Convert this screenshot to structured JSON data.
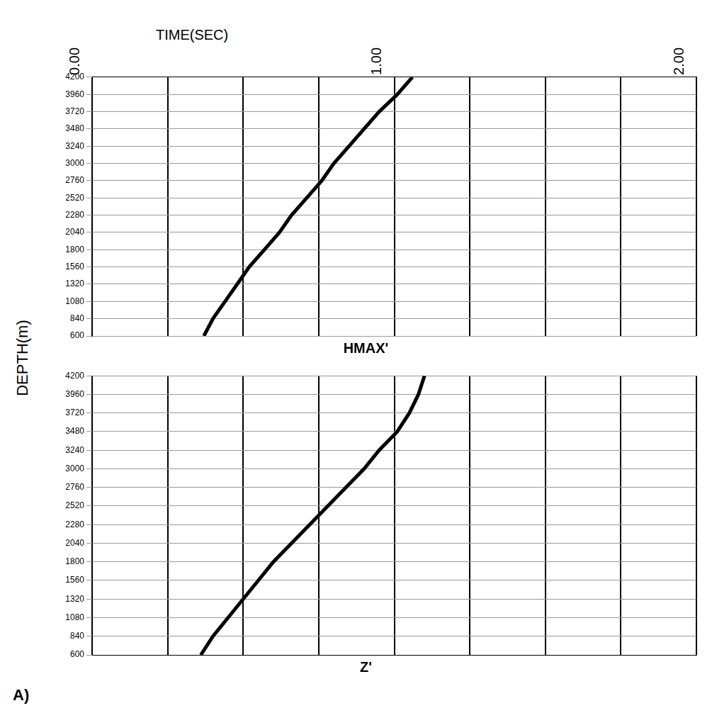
{
  "figure": {
    "x_label": "TIME(SEC)",
    "y_label": "DEPTH(m)",
    "panel_letter": "A)"
  },
  "chart_data": [
    {
      "type": "line",
      "title": "HMAX'",
      "xlim": [
        0,
        2
      ],
      "xticks": [
        {
          "value": 0,
          "label": "0.00"
        },
        {
          "value": 0.25,
          "label": null
        },
        {
          "value": 0.5,
          "label": null
        },
        {
          "value": 0.75,
          "label": null
        },
        {
          "value": 1,
          "label": "1.00"
        },
        {
          "value": 1.25,
          "label": null
        },
        {
          "value": 1.5,
          "label": null
        },
        {
          "value": 1.75,
          "label": null
        },
        {
          "value": 2,
          "label": "2.00"
        }
      ],
      "ylim": [
        600,
        4200
      ],
      "yticks": [
        600,
        840,
        1080,
        1320,
        1560,
        1800,
        2040,
        2280,
        2520,
        2760,
        3000,
        3240,
        3480,
        3720,
        3960,
        4200
      ],
      "grid": true,
      "tick_labels": true,
      "series": [
        {
          "color": "#000000",
          "y": [
            600,
            840,
            1080,
            1320,
            1560,
            1800,
            2040,
            2280,
            2520,
            2760,
            3000,
            3240,
            3480,
            3720,
            3960,
            4200
          ],
          "x": [
            0.37,
            0.4,
            0.44,
            0.48,
            0.52,
            0.57,
            0.62,
            0.66,
            0.71,
            0.76,
            0.8,
            0.85,
            0.9,
            0.95,
            1.01,
            1.06
          ]
        }
      ]
    },
    {
      "type": "line",
      "title": "Z'",
      "xlim": [
        0,
        2
      ],
      "xticks": [
        {
          "value": 0,
          "label": null
        },
        {
          "value": 0.25,
          "label": null
        },
        {
          "value": 0.5,
          "label": null
        },
        {
          "value": 0.75,
          "label": null
        },
        {
          "value": 1,
          "label": null
        },
        {
          "value": 1.25,
          "label": null
        },
        {
          "value": 1.5,
          "label": null
        },
        {
          "value": 1.75,
          "label": null
        },
        {
          "value": 2,
          "label": null
        }
      ],
      "ylim": [
        600,
        4200
      ],
      "yticks": [
        600,
        840,
        1080,
        1320,
        1560,
        1800,
        2040,
        2280,
        2520,
        2760,
        3000,
        3240,
        3480,
        3720,
        3960,
        4200
      ],
      "grid": true,
      "tick_labels": "y",
      "series": [
        {
          "color": "#000000",
          "y": [
            600,
            840,
            1080,
            1320,
            1560,
            1800,
            2040,
            2280,
            2520,
            2760,
            3000,
            3240,
            3480,
            3720,
            3960,
            4200
          ],
          "x": [
            0.36,
            0.4,
            0.45,
            0.5,
            0.55,
            0.6,
            0.66,
            0.72,
            0.78,
            0.84,
            0.9,
            0.95,
            1.01,
            1.05,
            1.08,
            1.1
          ]
        }
      ]
    }
  ]
}
